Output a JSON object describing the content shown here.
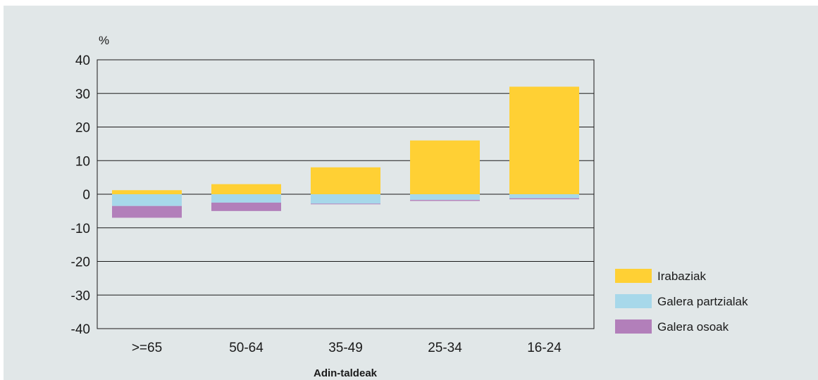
{
  "chart_data": {
    "type": "bar",
    "stacked": true,
    "title": "",
    "ylabel": "%",
    "xlabel": "Adin-taldeak",
    "ylim": [
      -40,
      40
    ],
    "yticks": [
      40,
      30,
      20,
      10,
      0,
      -10,
      -20,
      -30,
      -40
    ],
    "grid": true,
    "legend_position": "bottom-right",
    "categories": [
      ">=65",
      "50-64",
      "35-49",
      "25-34",
      "16-24"
    ],
    "series": [
      {
        "name": "Irabaziak",
        "color": "#ffd034",
        "values": [
          1.2,
          3,
          8,
          16,
          32
        ]
      },
      {
        "name": "Galera partzialak",
        "color": "#a7d8ea",
        "values": [
          -3.5,
          -2.5,
          -2.8,
          -1.7,
          -1.2
        ]
      },
      {
        "name": "Galera osoak",
        "color": "#b27fba",
        "values": [
          -3.5,
          -2.5,
          -0.2,
          -0.3,
          -0.3
        ]
      }
    ]
  },
  "style": {
    "background": "#e1e7e8",
    "axis_color": "#1a1a1a",
    "grid_color": "#1a1a1a"
  }
}
